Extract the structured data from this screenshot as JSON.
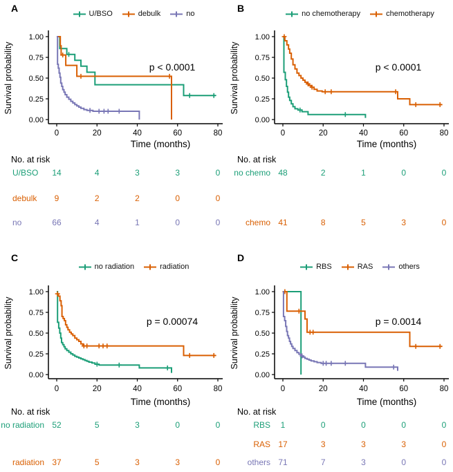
{
  "figure": {
    "y_axis_label": "Survival probability",
    "x_axis_label": "Time (months)",
    "risk_header": "No. at risk",
    "y_tick_labels": [
      "0.00",
      "0.25",
      "0.50",
      "0.75",
      "1.00"
    ],
    "x_tick_labels": [
      "0",
      "20",
      "40",
      "60",
      "80"
    ]
  },
  "colors": {
    "teal": "#1b9e77",
    "orange": "#d95f02",
    "purple": "#7876b5",
    "axis": "#000000",
    "text": "#000000"
  },
  "chart_data": [
    {
      "type": "line",
      "subtype": "kaplan-meier",
      "letter": "A",
      "p_label": "p < 0.0001",
      "xlabel": "Time (months)",
      "ylabel": "Survival probability",
      "xlim": [
        0,
        80
      ],
      "ylim": [
        0,
        1
      ],
      "x_ticks": [
        0,
        20,
        40,
        60,
        80
      ],
      "y_ticks": [
        0,
        0.25,
        0.5,
        0.75,
        1
      ],
      "series": [
        {
          "name": "U/BSO",
          "color_key": "teal",
          "steps": [
            [
              0,
              1
            ],
            [
              1.5,
              0.857
            ],
            [
              5,
              0.786
            ],
            [
              9,
              0.714
            ],
            [
              12,
              0.643
            ],
            [
              15,
              0.571
            ],
            [
              19,
              0.42
            ],
            [
              63,
              0.29
            ],
            [
              79,
              0.29
            ]
          ],
          "censors": [
            [
              6,
              0.786
            ],
            [
              66,
              0.29
            ],
            [
              78,
              0.29
            ]
          ]
        },
        {
          "name": "debulk",
          "color_key": "orange",
          "steps": [
            [
              0,
              1
            ],
            [
              1.8,
              0.889
            ],
            [
              2.2,
              0.778
            ],
            [
              4.5,
              0.653
            ],
            [
              10,
              0.522
            ],
            [
              57,
              0
            ]
          ],
          "censors": [
            [
              3,
              0.778
            ],
            [
              12,
              0.522
            ],
            [
              56,
              0.522
            ]
          ]
        },
        {
          "name": "no",
          "color_key": "purple",
          "steps": [
            [
              0,
              1
            ],
            [
              0.4,
              0.667
            ],
            [
              0.8,
              0.62
            ],
            [
              1.2,
              0.56
            ],
            [
              1.6,
              0.51
            ],
            [
              2,
              0.44
            ],
            [
              2.5,
              0.4
            ],
            [
              3,
              0.36
            ],
            [
              3.6,
              0.33
            ],
            [
              4.2,
              0.3
            ],
            [
              5,
              0.27
            ],
            [
              6,
              0.245
            ],
            [
              7,
              0.22
            ],
            [
              8,
              0.2
            ],
            [
              9,
              0.18
            ],
            [
              10,
              0.165
            ],
            [
              11,
              0.15
            ],
            [
              12,
              0.135
            ],
            [
              13.5,
              0.12
            ],
            [
              15,
              0.11
            ],
            [
              18,
              0.1
            ],
            [
              41,
              0
            ]
          ],
          "censors": [
            [
              16.5,
              0.11
            ],
            [
              21,
              0.1
            ],
            [
              23.5,
              0.1
            ],
            [
              25.5,
              0.1
            ],
            [
              31,
              0.1
            ]
          ]
        }
      ],
      "risk_rows": [
        {
          "label": "U/BSO",
          "color_key": "teal",
          "slot": 0,
          "counts": [
            "14",
            "4",
            "3",
            "3",
            "0"
          ]
        },
        {
          "label": "debulk",
          "color_key": "orange",
          "slot": 1,
          "counts": [
            "9",
            "2",
            "2",
            "0",
            "0"
          ]
        },
        {
          "label": "no",
          "color_key": "purple",
          "slot": 2,
          "counts": [
            "66",
            "4",
            "1",
            "0",
            "0"
          ]
        }
      ]
    },
    {
      "type": "line",
      "subtype": "kaplan-meier",
      "letter": "B",
      "p_label": "p < 0.0001",
      "xlabel": "Time (months)",
      "ylabel": "Survival probability",
      "xlim": [
        0,
        80
      ],
      "ylim": [
        0,
        1
      ],
      "x_ticks": [
        0,
        20,
        40,
        60,
        80
      ],
      "y_ticks": [
        0,
        0.25,
        0.5,
        0.75,
        1
      ],
      "series": [
        {
          "name": "no chemotherapy",
          "color_key": "teal",
          "steps": [
            [
              0,
              1
            ],
            [
              0.5,
              0.57
            ],
            [
              1.2,
              0.48
            ],
            [
              1.8,
              0.4
            ],
            [
              2.3,
              0.33
            ],
            [
              2.8,
              0.27
            ],
            [
              3.4,
              0.23
            ],
            [
              4.2,
              0.19
            ],
            [
              5,
              0.155
            ],
            [
              6,
              0.13
            ],
            [
              7.5,
              0.115
            ],
            [
              9.5,
              0.095
            ],
            [
              12.5,
              0.06
            ],
            [
              41,
              0.02
            ]
          ],
          "censors": [
            [
              8.5,
              0.115
            ],
            [
              31,
              0.06
            ]
          ]
        },
        {
          "name": "chemotherapy",
          "color_key": "orange",
          "steps": [
            [
              0,
              1
            ],
            [
              1,
              0.95
            ],
            [
              2,
              0.9
            ],
            [
              2.8,
              0.85
            ],
            [
              3.4,
              0.8
            ],
            [
              4.2,
              0.73
            ],
            [
              5,
              0.66
            ],
            [
              6,
              0.61
            ],
            [
              7,
              0.56
            ],
            [
              8,
              0.53
            ],
            [
              9,
              0.5
            ],
            [
              10,
              0.475
            ],
            [
              11,
              0.45
            ],
            [
              12,
              0.43
            ],
            [
              13,
              0.41
            ],
            [
              14,
              0.39
            ],
            [
              15.5,
              0.365
            ],
            [
              17,
              0.345
            ],
            [
              19.5,
              0.335
            ],
            [
              57,
              0.25
            ],
            [
              63,
              0.18
            ],
            [
              79,
              0.18
            ]
          ],
          "censors": [
            [
              0.7,
              1
            ],
            [
              12.5,
              0.43
            ],
            [
              14.5,
              0.39
            ],
            [
              21,
              0.335
            ],
            [
              24,
              0.335
            ],
            [
              56,
              0.335
            ],
            [
              66,
              0.18
            ],
            [
              78,
              0.18
            ]
          ]
        }
      ],
      "risk_rows": [
        {
          "label": "no chemo",
          "color_key": "teal",
          "slot": 0,
          "counts": [
            "48",
            "2",
            "1",
            "0",
            "0"
          ]
        },
        {
          "label": "chemo",
          "color_key": "orange",
          "slot": 2,
          "counts": [
            "41",
            "8",
            "5",
            "3",
            "0"
          ]
        }
      ]
    },
    {
      "type": "line",
      "subtype": "kaplan-meier",
      "letter": "C",
      "p_label": "p = 0.00074",
      "xlabel": "Time (months)",
      "ylabel": "Survival probability",
      "xlim": [
        0,
        80
      ],
      "ylim": [
        0,
        1
      ],
      "x_ticks": [
        0,
        20,
        40,
        60,
        80
      ],
      "y_ticks": [
        0,
        0.25,
        0.5,
        0.75,
        1
      ],
      "series": [
        {
          "name": "no radiation",
          "color_key": "teal",
          "steps": [
            [
              0,
              1
            ],
            [
              0.4,
              0.63
            ],
            [
              1,
              0.56
            ],
            [
              1.5,
              0.5
            ],
            [
              2,
              0.44
            ],
            [
              2.4,
              0.385
            ],
            [
              3,
              0.36
            ],
            [
              3.6,
              0.335
            ],
            [
              4.2,
              0.31
            ],
            [
              5,
              0.29
            ],
            [
              6,
              0.27
            ],
            [
              7,
              0.25
            ],
            [
              8,
              0.235
            ],
            [
              9,
              0.22
            ],
            [
              10,
              0.21
            ],
            [
              11,
              0.2
            ],
            [
              12,
              0.19
            ],
            [
              13,
              0.18
            ],
            [
              14,
              0.17
            ],
            [
              15,
              0.16
            ],
            [
              16,
              0.15
            ],
            [
              17.5,
              0.14
            ],
            [
              19,
              0.125
            ],
            [
              21,
              0.115
            ],
            [
              41,
              0.08
            ],
            [
              57,
              0.02
            ]
          ],
          "censors": [
            [
              20,
              0.125
            ],
            [
              31,
              0.115
            ],
            [
              55,
              0.08
            ]
          ]
        },
        {
          "name": "radiation",
          "color_key": "orange",
          "steps": [
            [
              0,
              0.973
            ],
            [
              0.8,
              0.946
            ],
            [
              1.6,
              0.89
            ],
            [
              2.2,
              0.83
            ],
            [
              2.6,
              0.7
            ],
            [
              3.2,
              0.675
            ],
            [
              3.8,
              0.65
            ],
            [
              4.4,
              0.6
            ],
            [
              5,
              0.57
            ],
            [
              5.6,
              0.54
            ],
            [
              6.4,
              0.51
            ],
            [
              7.2,
              0.49
            ],
            [
              8,
              0.47
            ],
            [
              9,
              0.44
            ],
            [
              10,
              0.42
            ],
            [
              11,
              0.4
            ],
            [
              12,
              0.37
            ],
            [
              13,
              0.345
            ],
            [
              63,
              0.23
            ],
            [
              79,
              0.23
            ]
          ],
          "censors": [
            [
              0.4,
              0.973
            ],
            [
              13.5,
              0.345
            ],
            [
              15,
              0.345
            ],
            [
              21,
              0.345
            ],
            [
              23,
              0.345
            ],
            [
              25,
              0.345
            ],
            [
              66,
              0.23
            ],
            [
              78,
              0.23
            ]
          ]
        }
      ],
      "risk_rows": [
        {
          "label": "no radiation",
          "color_key": "teal",
          "slot": 0,
          "counts": [
            "52",
            "5",
            "3",
            "0",
            "0"
          ]
        },
        {
          "label": "radiation",
          "color_key": "orange",
          "slot": 2,
          "counts": [
            "37",
            "5",
            "3",
            "3",
            "0"
          ]
        }
      ]
    },
    {
      "type": "line",
      "subtype": "kaplan-meier",
      "letter": "D",
      "p_label": "p = 0.0014",
      "xlabel": "Time (months)",
      "ylabel": "Survival probability",
      "xlim": [
        0,
        80
      ],
      "ylim": [
        0,
        1
      ],
      "x_ticks": [
        0,
        20,
        40,
        60,
        80
      ],
      "y_ticks": [
        0,
        0.25,
        0.5,
        0.75,
        1
      ],
      "series": [
        {
          "name": "RBS",
          "color_key": "teal",
          "steps": [
            [
              0,
              1
            ],
            [
              9,
              0
            ]
          ],
          "censors": []
        },
        {
          "name": "RAS",
          "color_key": "orange",
          "steps": [
            [
              0,
              1
            ],
            [
              2,
              0.765
            ],
            [
              11,
              0.67
            ],
            [
              12,
              0.51
            ],
            [
              63,
              0.34
            ],
            [
              79,
              0.34
            ]
          ],
          "censors": [
            [
              1,
              1
            ],
            [
              8,
              0.765
            ],
            [
              13.5,
              0.51
            ],
            [
              15,
              0.51
            ],
            [
              66,
              0.34
            ],
            [
              78,
              0.34
            ]
          ]
        },
        {
          "name": "others",
          "color_key": "purple",
          "steps": [
            [
              0,
              1
            ],
            [
              0.3,
              0.7
            ],
            [
              0.9,
              0.65
            ],
            [
              1.4,
              0.58
            ],
            [
              1.9,
              0.52
            ],
            [
              2.3,
              0.47
            ],
            [
              2.8,
              0.44
            ],
            [
              3.3,
              0.4
            ],
            [
              3.8,
              0.37
            ],
            [
              4.4,
              0.34
            ],
            [
              5,
              0.315
            ],
            [
              6,
              0.29
            ],
            [
              7,
              0.265
            ],
            [
              8,
              0.245
            ],
            [
              9,
              0.225
            ],
            [
              10,
              0.21
            ],
            [
              11,
              0.195
            ],
            [
              12,
              0.185
            ],
            [
              13,
              0.175
            ],
            [
              14,
              0.165
            ],
            [
              15.5,
              0.155
            ],
            [
              17,
              0.145
            ],
            [
              19,
              0.135
            ],
            [
              41,
              0.09
            ],
            [
              57,
              0.045
            ]
          ],
          "censors": [
            [
              9.5,
              0.225
            ],
            [
              20,
              0.135
            ],
            [
              21.5,
              0.135
            ],
            [
              24,
              0.135
            ],
            [
              31,
              0.135
            ],
            [
              55,
              0.09
            ]
          ]
        }
      ],
      "risk_rows": [
        {
          "label": "RBS",
          "color_key": "teal",
          "slot": 0,
          "counts": [
            "1",
            "0",
            "0",
            "0",
            "0"
          ]
        },
        {
          "label": "RAS",
          "color_key": "orange",
          "slot": 1,
          "counts": [
            "17",
            "3",
            "3",
            "3",
            "0"
          ]
        },
        {
          "label": "others",
          "color_key": "purple",
          "slot": 2,
          "counts": [
            "71",
            "7",
            "3",
            "0",
            "0"
          ]
        }
      ]
    }
  ]
}
